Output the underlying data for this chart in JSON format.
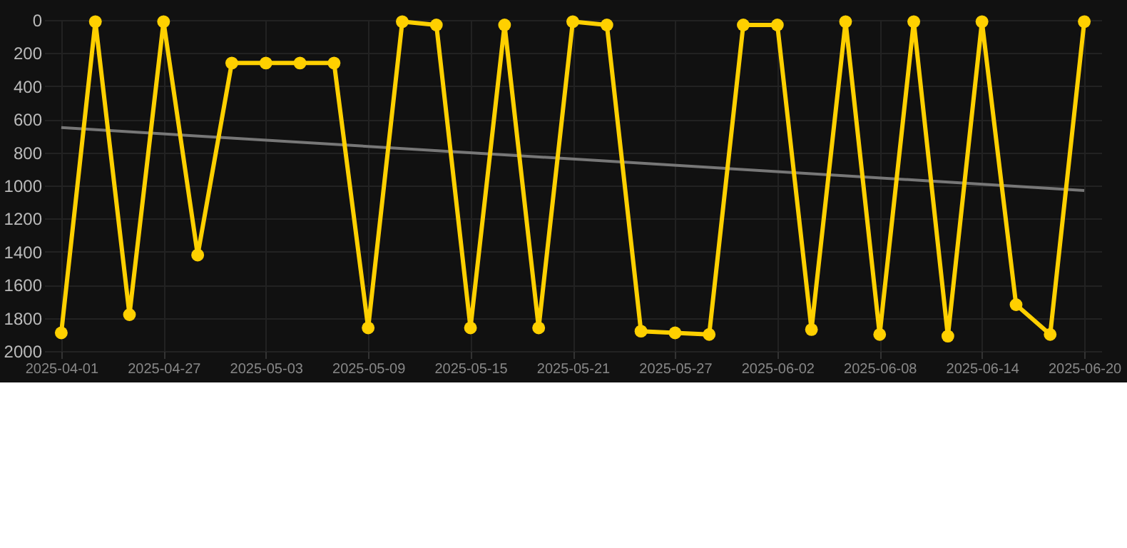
{
  "chart_data": {
    "type": "line",
    "categories": [
      "2025-04-01",
      null,
      null,
      "2025-04-27",
      null,
      null,
      "2025-05-03",
      null,
      null,
      "2025-05-09",
      null,
      null,
      "2025-05-15",
      null,
      null,
      "2025-05-21",
      null,
      null,
      "2025-05-27",
      null,
      null,
      "2025-06-02",
      null,
      null,
      "2025-06-08",
      null,
      null,
      "2025-06-14",
      null,
      null,
      "2025-06-20"
    ],
    "series": [
      {
        "color": "#ffd000",
        "marker": "circle",
        "values": [
          1890,
          10,
          1780,
          10,
          1420,
          260,
          260,
          260,
          260,
          1860,
          10,
          30,
          1860,
          30,
          1860,
          10,
          30,
          1880,
          1890,
          1900,
          30,
          30,
          1870,
          10,
          1900,
          10,
          1910,
          10,
          1720,
          1900,
          10
        ]
      },
      {
        "type": "line",
        "color": "#777777",
        "marker": "none",
        "values": [
          650,
          null,
          null,
          null,
          null,
          null,
          null,
          null,
          null,
          null,
          null,
          null,
          null,
          null,
          null,
          null,
          null,
          null,
          null,
          null,
          null,
          null,
          null,
          null,
          null,
          null,
          null,
          null,
          null,
          null,
          1030
        ]
      }
    ],
    "ylim": [
      2000,
      0
    ],
    "yticks": [
      0,
      200,
      400,
      600,
      800,
      1000,
      1200,
      1400,
      1600,
      1800,
      2000
    ],
    "grid": true,
    "line_style": "solid"
  }
}
